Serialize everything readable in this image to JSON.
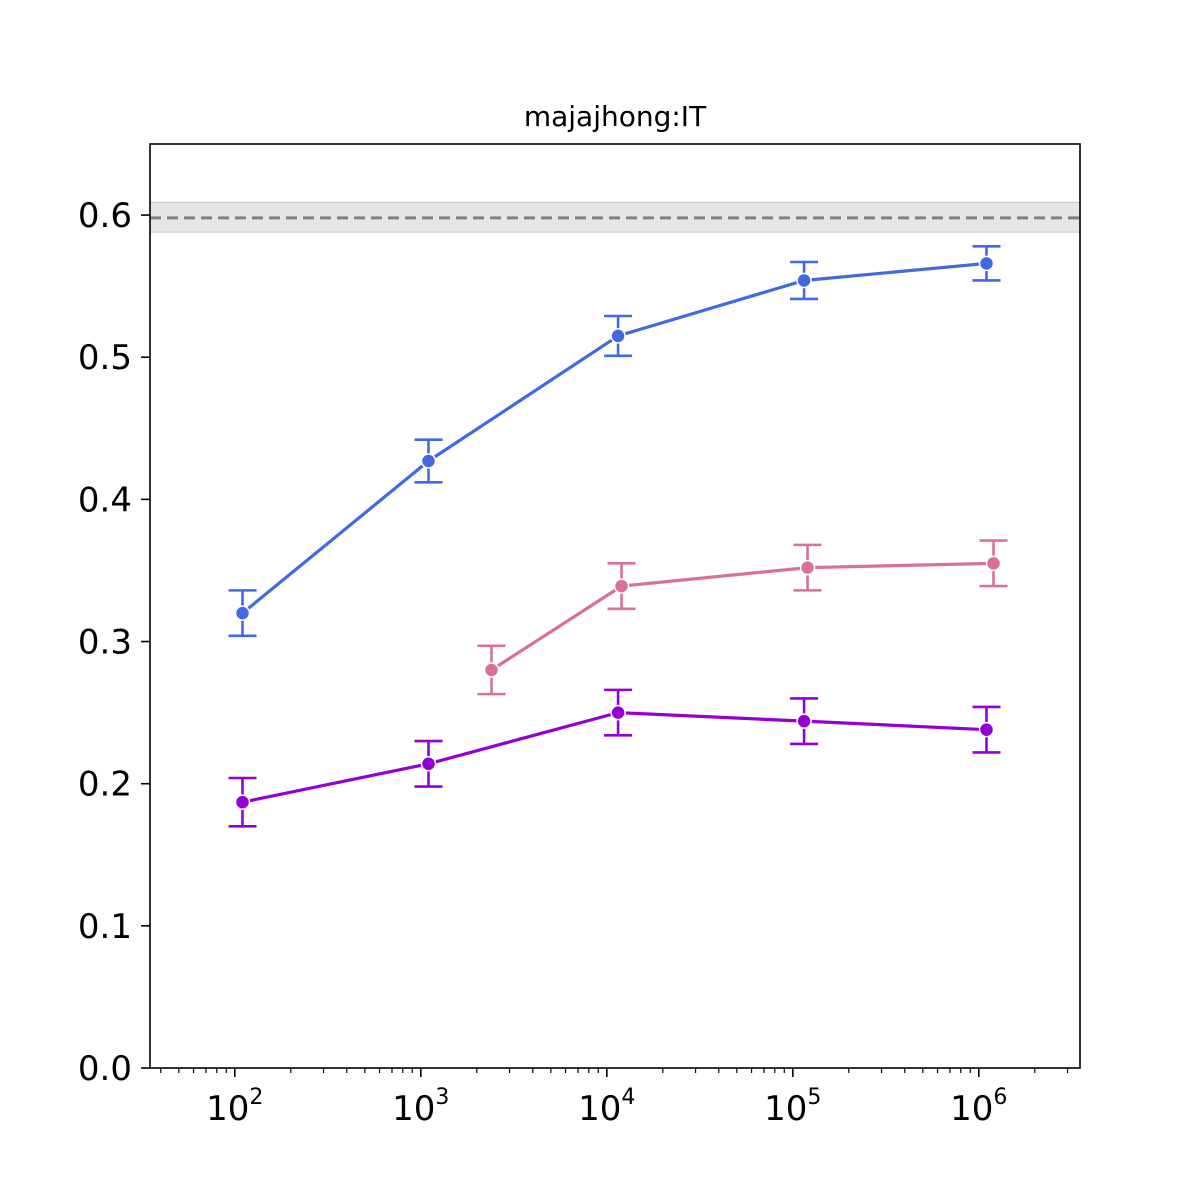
{
  "chart_data": {
    "type": "line",
    "title": "majajhong:IT",
    "xlabel": "",
    "ylabel": "",
    "xscale": "log",
    "xlim": [
      35,
      3500000
    ],
    "ylim": [
      0.0,
      0.65
    ],
    "x_ticks": [
      {
        "value": 100,
        "base": "10",
        "exp": "2"
      },
      {
        "value": 1000,
        "base": "10",
        "exp": "3"
      },
      {
        "value": 10000,
        "base": "10",
        "exp": "4"
      },
      {
        "value": 100000,
        "base": "10",
        "exp": "5"
      },
      {
        "value": 1000000,
        "base": "10",
        "exp": "6"
      }
    ],
    "y_ticks": [
      "0.0",
      "0.1",
      "0.2",
      "0.3",
      "0.4",
      "0.5",
      "0.6"
    ],
    "grid": false,
    "reference": {
      "value": 0.598,
      "band": [
        0.588,
        0.609
      ],
      "style": "dashed",
      "color": "#808080",
      "band_color": "#e6e6e6"
    },
    "series": [
      {
        "color": "#4169e1",
        "x": [
          110,
          1100,
          11500,
          115000,
          1100000
        ],
        "y": [
          0.32,
          0.427,
          0.515,
          0.554,
          0.566
        ],
        "err": [
          0.016,
          0.015,
          0.014,
          0.013,
          0.012
        ]
      },
      {
        "color": "#d8719a",
        "x": [
          2400,
          12000,
          120000,
          1200000
        ],
        "y": [
          0.28,
          0.339,
          0.352,
          0.355
        ],
        "err": [
          0.017,
          0.016,
          0.016,
          0.016
        ]
      },
      {
        "color": "#9400d3",
        "x": [
          110,
          1100,
          11500,
          115000,
          1100000
        ],
        "y": [
          0.187,
          0.214,
          0.25,
          0.244,
          0.238
        ],
        "err": [
          0.017,
          0.016,
          0.016,
          0.016,
          0.016
        ]
      }
    ]
  }
}
